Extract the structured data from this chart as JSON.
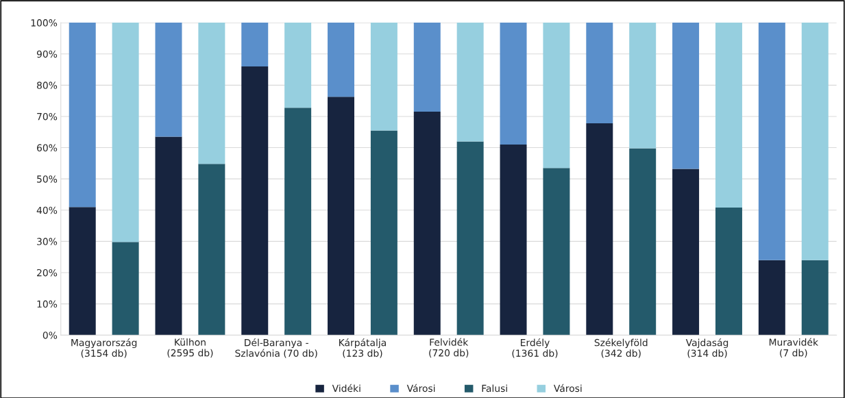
{
  "chart_data": {
    "type": "bar",
    "stacked": true,
    "categories": [
      "Magyarország\n(3154 db)",
      null,
      "Külhon\n(2595 db)",
      null,
      "Dél-Baranya -\nSzlavónia (70 db)",
      null,
      "Kárpátalja\n(123 db)",
      null,
      "Felvidék\n(720 db)",
      null,
      "Erdély\n(1361 db)",
      null,
      "Székelyföld\n(342 db)",
      null,
      "Vajdaság\n(314 db)",
      null,
      "Muravidék\n(7 db)",
      null
    ],
    "series": [
      {
        "name": "Vidéki",
        "color": "#17243f",
        "values": [
          41,
          null,
          63.5,
          null,
          86,
          null,
          76.3,
          null,
          71.5,
          null,
          61,
          null,
          67.8,
          null,
          53.2,
          null,
          24,
          null
        ]
      },
      {
        "name": "Városi",
        "color": "#5a8fcb",
        "values": [
          59,
          null,
          36.5,
          null,
          14,
          null,
          23.7,
          null,
          28.5,
          null,
          39,
          null,
          32.2,
          null,
          46.8,
          null,
          76,
          null
        ]
      },
      {
        "name": "Falusi",
        "color": "#245a6b",
        "values": [
          null,
          29.8,
          null,
          54.8,
          null,
          72.8,
          null,
          65.5,
          null,
          62,
          null,
          53.5,
          null,
          59.8,
          null,
          40.8,
          null,
          24
        ]
      },
      {
        "name": "Városi",
        "color": "#96cfdf",
        "values": [
          null,
          70.2,
          null,
          45.2,
          null,
          27.2,
          null,
          34.5,
          null,
          38,
          null,
          46.5,
          null,
          40.2,
          null,
          59.2,
          null,
          76
        ]
      }
    ],
    "ylim": [
      0,
      100
    ],
    "yticks": [
      {
        "value": 0,
        "label": "0%"
      },
      {
        "value": 10,
        "label": "10%"
      },
      {
        "value": 20,
        "label": "20%"
      },
      {
        "value": 30,
        "label": "30%"
      },
      {
        "value": 40,
        "label": "40%"
      },
      {
        "value": 50,
        "label": "50%"
      },
      {
        "value": 60,
        "label": "60%"
      },
      {
        "value": 70,
        "label": "70%"
      },
      {
        "value": 80,
        "label": "80%"
      },
      {
        "value": 90,
        "label": "90%"
      },
      {
        "value": 100,
        "label": "100%"
      }
    ],
    "grid": "y",
    "legend": "bottom"
  }
}
